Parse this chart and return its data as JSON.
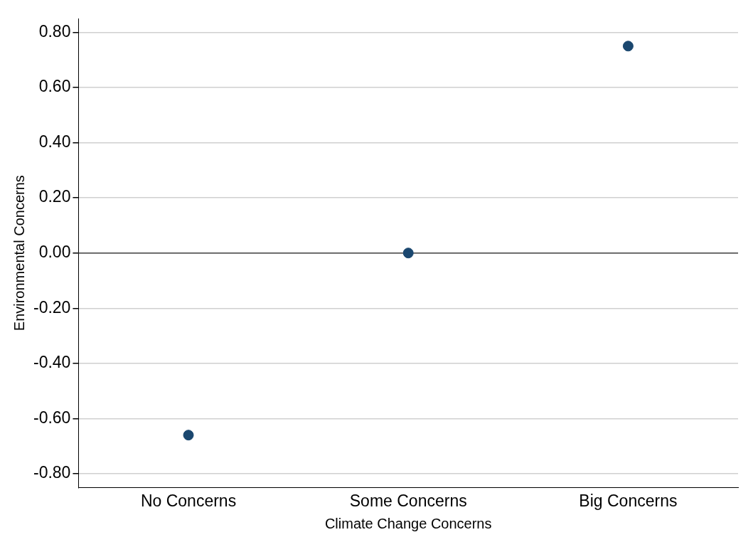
{
  "chart_data": {
    "type": "scatter",
    "xlabel": "Climate Change Concerns",
    "ylabel": "Environmental Concerns",
    "categories": [
      "No Concerns",
      "Some Concerns",
      "Big Concerns"
    ],
    "series": [
      {
        "color": "#1a476f",
        "values": [
          -0.66,
          0.0,
          0.75
        ]
      }
    ],
    "ylim": [
      -0.85,
      0.85
    ],
    "yticks": [
      {
        "value": -0.8,
        "label": "-0.80"
      },
      {
        "value": -0.6,
        "label": "-0.60"
      },
      {
        "value": -0.4,
        "label": "-0.40"
      },
      {
        "value": -0.2,
        "label": "-0.20"
      },
      {
        "value": 0,
        "label": "0.00"
      },
      {
        "value": 0.2,
        "label": "0.20"
      },
      {
        "value": 0.4,
        "label": "0.40"
      },
      {
        "value": 0.6,
        "label": "0.60"
      },
      {
        "value": 0.8,
        "label": "0.80"
      }
    ],
    "grid": "y",
    "marker": "circle",
    "legend": false,
    "ref_lines": [
      {
        "axis": "y",
        "value": 0,
        "color": "#444444"
      }
    ]
  }
}
